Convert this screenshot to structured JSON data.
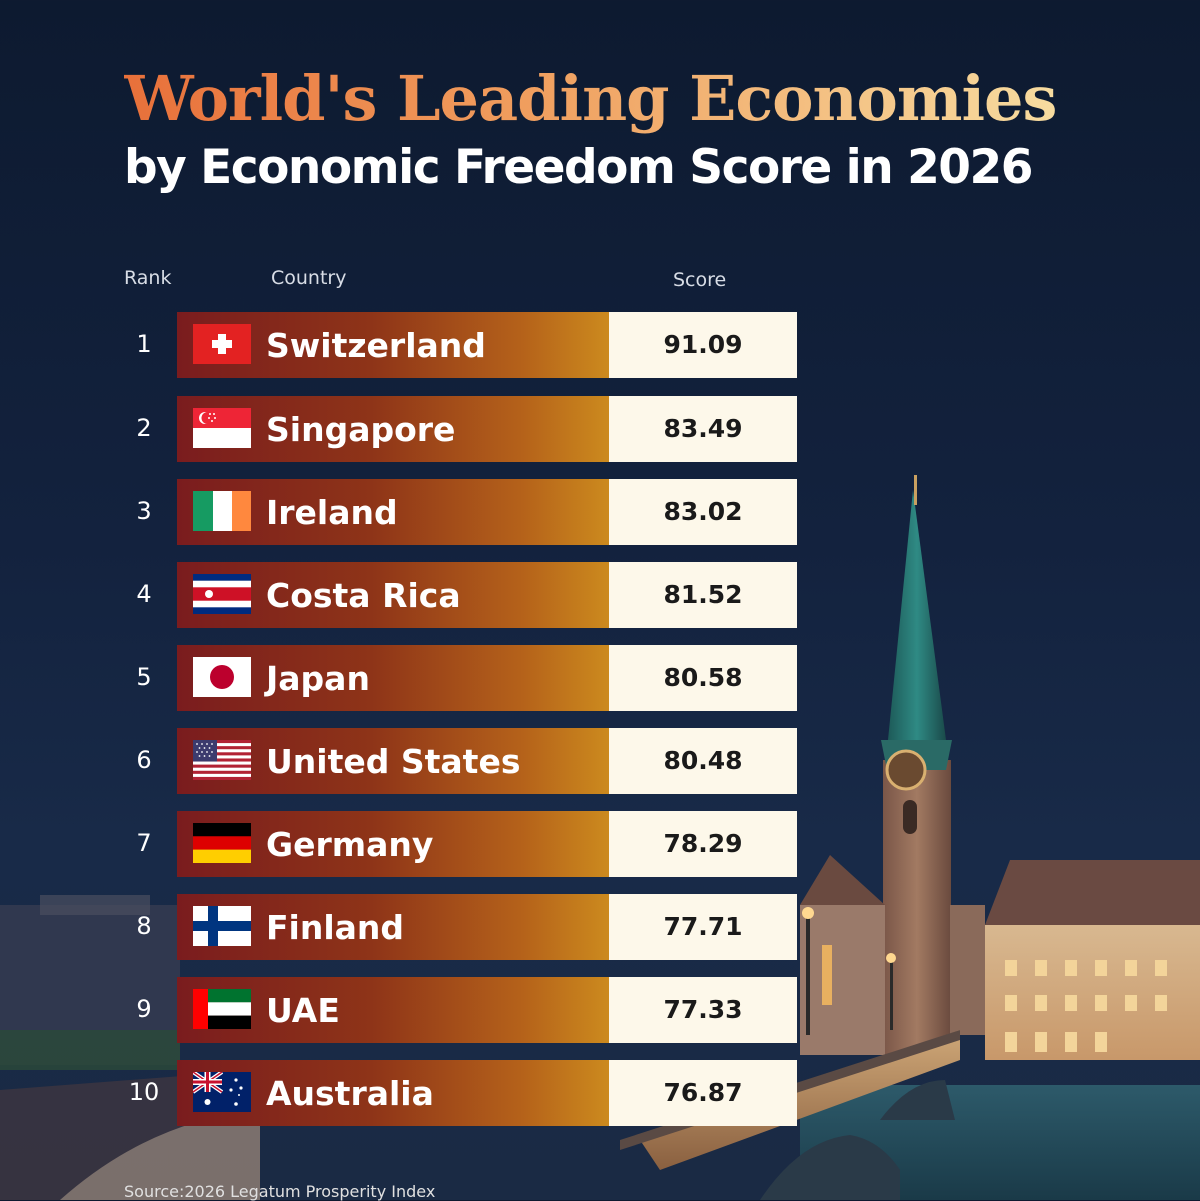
{
  "title": "World's Leading Economies",
  "subtitle": "by Economic Freedom Score in 2026",
  "columns": {
    "rank": "Rank",
    "country": "Country",
    "score": "Score"
  },
  "rows": [
    {
      "rank": "1",
      "country": "Switzerland",
      "score": "91.09",
      "flag": "switzerland-flag-icon"
    },
    {
      "rank": "2",
      "country": "Singapore",
      "score": "83.49",
      "flag": "singapore-flag-icon"
    },
    {
      "rank": "3",
      "country": "Ireland",
      "score": "83.02",
      "flag": "ireland-flag-icon"
    },
    {
      "rank": "4",
      "country": "Costa Rica",
      "score": "81.52",
      "flag": "costa-rica-flag-icon"
    },
    {
      "rank": "5",
      "country": "Japan",
      "score": "80.58",
      "flag": "japan-flag-icon"
    },
    {
      "rank": "6",
      "country": "United States",
      "score": "80.48",
      "flag": "usa-flag-icon"
    },
    {
      "rank": "7",
      "country": "Germany",
      "score": "78.29",
      "flag": "germany-flag-icon"
    },
    {
      "rank": "8",
      "country": "Finland",
      "score": "77.71",
      "flag": "finland-flag-icon"
    },
    {
      "rank": "9",
      "country": "UAE",
      "score": "77.33",
      "flag": "uae-flag-icon"
    },
    {
      "rank": "10",
      "country": "Australia",
      "score": "76.87",
      "flag": "australia-flag-icon"
    }
  ],
  "source": "Source:2026 Legatum Prosperity Index",
  "colors": {
    "title_start": "#e8703a",
    "title_end": "#f7dca0",
    "bar_start": "#7a1c1e",
    "bar_end": "#cc8a1e",
    "score_bg": "#fdf8ea",
    "background": "#13223e"
  }
}
